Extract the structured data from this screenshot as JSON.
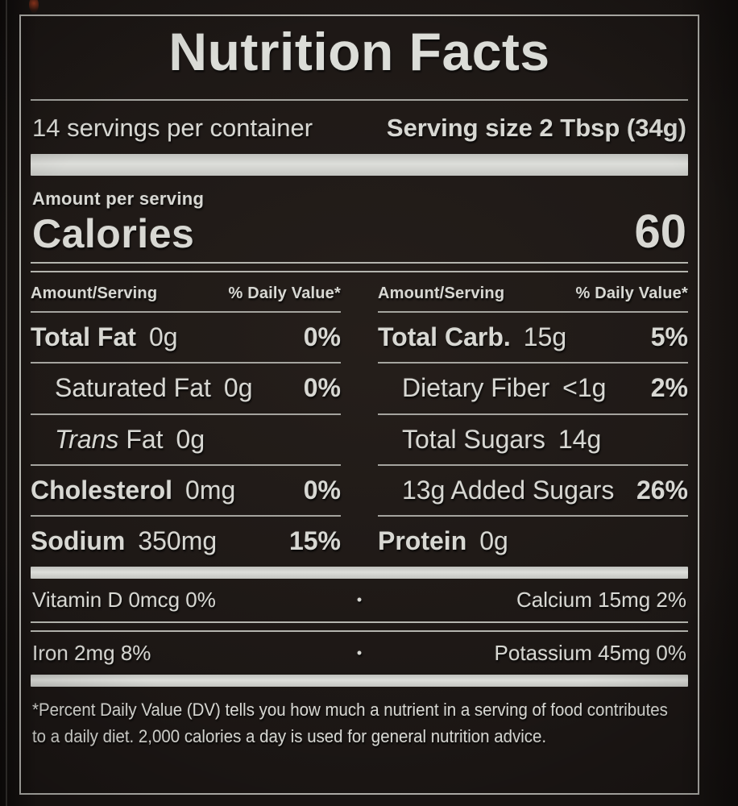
{
  "header": {
    "title": "Nutrition Facts",
    "servings_per_container": "14 servings per container",
    "serving_size": "Serving size 2 Tbsp (34g)"
  },
  "calories_section": {
    "amount_per_serving": "Amount per serving",
    "calories_label": "Calories",
    "calories_value": "60"
  },
  "table": {
    "left": {
      "header_amount": "Amount/Serving",
      "header_dv": "% Daily Value*",
      "rows": [
        {
          "name": "Total Fat",
          "value": "0g",
          "dv": "0%"
        },
        {
          "name": "Saturated Fat",
          "value": "0g",
          "dv": "0%"
        },
        {
          "name_italic": "Trans",
          "name_rest": " Fat",
          "value": "0g",
          "dv": ""
        },
        {
          "name": "Cholesterol",
          "value": "0mg",
          "dv": "0%"
        },
        {
          "name": "Sodium",
          "value": "350mg",
          "dv": "15%"
        }
      ]
    },
    "right": {
      "header_amount": "Amount/Serving",
      "header_dv": "% Daily Value*",
      "rows": [
        {
          "name": "Total Carb.",
          "value": "15g",
          "dv": "5%"
        },
        {
          "name": "Dietary Fiber",
          "value": "<1g",
          "dv": "2%"
        },
        {
          "name": "Total Sugars",
          "value": "14g",
          "dv": ""
        },
        {
          "name": "13g Added Sugars",
          "value": "",
          "dv": "26%"
        },
        {
          "name": "Protein",
          "value": "0g",
          "dv": ""
        }
      ]
    }
  },
  "micronutrients": {
    "bullet": "•",
    "rows": [
      {
        "left": "Vitamin D 0mcg 0%",
        "right": "Calcium 15mg 2%"
      },
      {
        "left": "Iron 2mg 8%",
        "right": "Potassium 45mg 0%"
      }
    ]
  },
  "footnote": {
    "line1": "*Percent Daily Value (DV) tells you how much a nutrient in a serving of food contributes",
    "line2": "to a daily diet. 2,000 calories a day is used for general nutrition advice."
  },
  "colors": {
    "background": "#1b1614",
    "text": "#d8d8d3",
    "bar": "#d0d1cd",
    "line": "#b4b4ae",
    "border": "#d2d2cc"
  }
}
